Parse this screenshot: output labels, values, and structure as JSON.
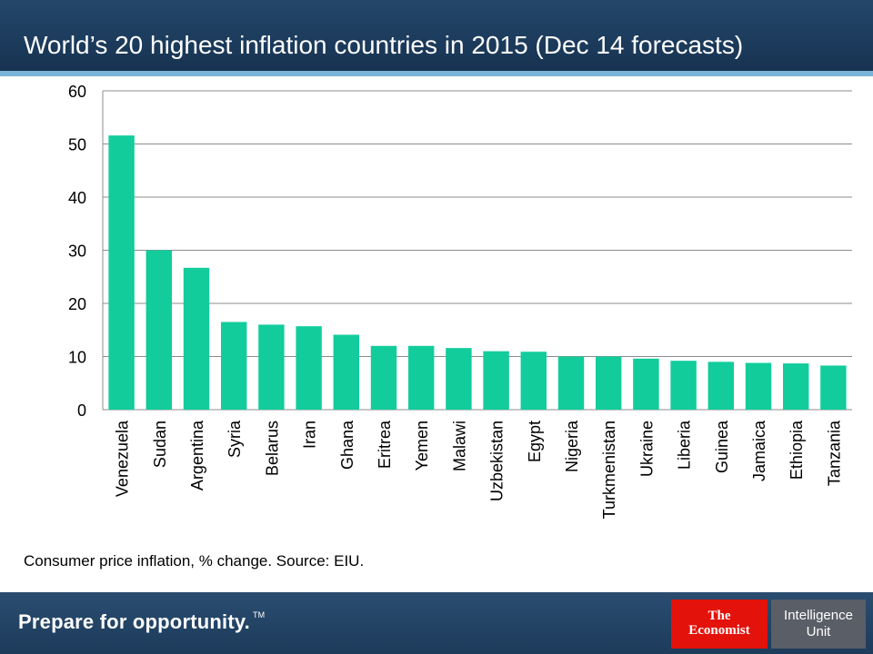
{
  "header": {
    "title": "World’s 20 highest inflation countries in 2015 (Dec 14 forecasts)"
  },
  "chart_data": {
    "type": "bar",
    "categories": [
      "Venezuela",
      "Sudan",
      "Argentina",
      "Syria",
      "Belarus",
      "Iran",
      "Ghana",
      "Eritrea",
      "Yemen",
      "Malawi",
      "Uzbekistan",
      "Egypt",
      "Nigeria",
      "Turkmenistan",
      "Ukraine",
      "Liberia",
      "Guinea",
      "Jamaica",
      "Ethiopia",
      "Tanzania"
    ],
    "values": [
      51.6,
      30.0,
      26.7,
      16.5,
      16.0,
      15.7,
      14.1,
      12.0,
      12.0,
      11.6,
      11.0,
      10.9,
      10.0,
      10.0,
      9.6,
      9.2,
      9.0,
      8.8,
      8.7,
      8.3
    ],
    "title": "World’s 20 highest inflation countries in 2015 (Dec 14 forecasts)",
    "xlabel": "",
    "ylabel": "",
    "ylim": [
      0,
      60
    ],
    "yticks": [
      "0",
      "10",
      "20",
      "30",
      "40",
      "50",
      "60"
    ],
    "grid": true,
    "bar_color": "#12cc9c"
  },
  "footnote": "Consumer price inflation, % change. Source: EIU.",
  "footer": {
    "tagline": "Prepare for opportunity.",
    "tagline_mark": "TM",
    "logo_economist_line1": "The",
    "logo_economist_line2": "Economist",
    "logo_iu_line1": "Intelligence",
    "logo_iu_line2": "Unit"
  }
}
